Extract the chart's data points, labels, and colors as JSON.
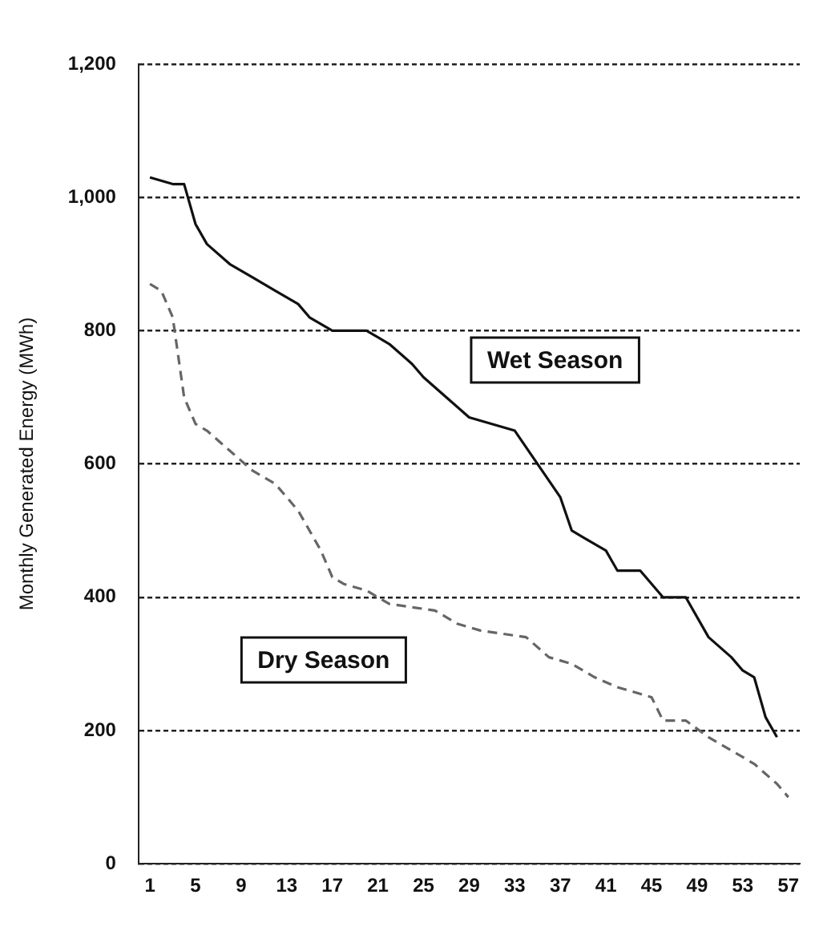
{
  "chart_data": {
    "type": "line",
    "ylabel": "Monthly Generated Energy (MWh)",
    "xlim": [
      0,
      58
    ],
    "xticks": [
      1,
      5,
      9,
      13,
      17,
      21,
      25,
      29,
      33,
      37,
      41,
      45,
      49,
      53,
      57
    ],
    "ylim": [
      0,
      1200
    ],
    "yticks": [
      0,
      200,
      400,
      600,
      800,
      {
        "value": 1000,
        "label": "1,000"
      },
      {
        "value": 1200,
        "label": "1,200"
      }
    ],
    "grid": "y",
    "legend": false,
    "marker": "none",
    "series": [
      {
        "name": "Wet Season",
        "color": "#111111",
        "line_style": "solid",
        "x": [
          1,
          3,
          4,
          5,
          6,
          8,
          10,
          12,
          14,
          15,
          17,
          20,
          21,
          22,
          24,
          25,
          27,
          29,
          31,
          33,
          35,
          37,
          38,
          39,
          41,
          42,
          44,
          46,
          48,
          50,
          52,
          53,
          54,
          55,
          56
        ],
        "values": [
          1030,
          1020,
          1020,
          960,
          930,
          900,
          880,
          860,
          840,
          820,
          800,
          800,
          790,
          780,
          750,
          730,
          700,
          670,
          660,
          650,
          600,
          550,
          500,
          490,
          470,
          440,
          440,
          400,
          400,
          340,
          310,
          290,
          280,
          220,
          190
        ]
      },
      {
        "name": "Dry Season",
        "color": "#666666",
        "line_style": "dashed",
        "x": [
          1,
          2,
          3,
          4,
          5,
          6,
          8,
          10,
          12,
          14,
          16,
          17,
          18,
          20,
          22,
          24,
          26,
          28,
          30,
          32,
          34,
          36,
          38,
          40,
          42,
          44,
          45,
          46,
          48,
          50,
          51,
          53,
          54,
          56,
          57
        ],
        "values": [
          870,
          860,
          820,
          700,
          660,
          650,
          620,
          590,
          570,
          530,
          470,
          430,
          420,
          410,
          390,
          385,
          380,
          360,
          350,
          345,
          340,
          310,
          300,
          280,
          265,
          255,
          250,
          215,
          215,
          190,
          180,
          160,
          150,
          120,
          100
        ]
      }
    ]
  }
}
